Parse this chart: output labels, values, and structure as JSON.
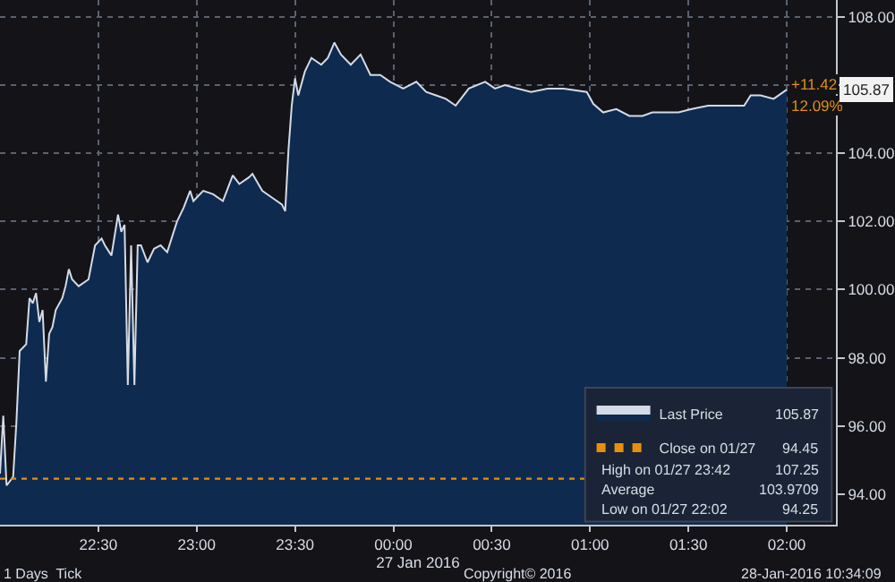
{
  "chart_data": {
    "type": "area",
    "xlabel": "27 Jan 2016",
    "x": [
      "2016-01-27T22:00",
      "2016-01-27T22:01",
      "2016-01-27T22:02",
      "2016-01-27T22:04",
      "2016-01-27T22:05",
      "2016-01-27T22:06",
      "2016-01-27T22:08",
      "2016-01-27T22:09",
      "2016-01-27T22:10",
      "2016-01-27T22:11",
      "2016-01-27T22:12",
      "2016-01-27T22:13",
      "2016-01-27T22:14",
      "2016-01-27T22:15",
      "2016-01-27T22:16",
      "2016-01-27T22:17",
      "2016-01-27T22:19",
      "2016-01-27T22:20",
      "2016-01-27T22:21",
      "2016-01-27T22:22",
      "2016-01-27T22:24",
      "2016-01-27T22:27",
      "2016-01-27T22:29",
      "2016-01-27T22:31",
      "2016-01-27T22:32",
      "2016-01-27T22:34",
      "2016-01-27T22:36",
      "2016-01-27T22:37",
      "2016-01-27T22:38",
      "2016-01-27T22:39",
      "2016-01-27T22:40",
      "2016-01-27T22:41",
      "2016-01-27T22:42",
      "2016-01-27T22:43",
      "2016-01-27T22:45",
      "2016-01-27T22:47",
      "2016-01-27T22:49",
      "2016-01-27T22:51",
      "2016-01-27T22:54",
      "2016-01-27T22:56",
      "2016-01-27T22:58",
      "2016-01-27T22:59",
      "2016-01-27T23:02",
      "2016-01-27T23:05",
      "2016-01-27T23:08",
      "2016-01-27T23:10",
      "2016-01-27T23:11",
      "2016-01-27T23:13",
      "2016-01-27T23:16",
      "2016-01-27T23:17",
      "2016-01-27T23:20",
      "2016-01-27T23:23",
      "2016-01-27T23:26",
      "2016-01-27T23:27",
      "2016-01-27T23:28",
      "2016-01-27T23:29",
      "2016-01-27T23:30",
      "2016-01-27T23:31",
      "2016-01-27T23:33",
      "2016-01-27T23:35",
      "2016-01-27T23:38",
      "2016-01-27T23:40",
      "2016-01-27T23:42",
      "2016-01-27T23:44",
      "2016-01-27T23:47",
      "2016-01-27T23:50",
      "2016-01-27T23:53",
      "2016-01-27T23:56",
      "2016-01-27T23:59",
      "2016-01-28T00:03",
      "2016-01-28T00:07",
      "2016-01-28T00:10",
      "2016-01-28T00:13",
      "2016-01-28T00:16",
      "2016-01-28T00:19",
      "2016-01-28T00:23",
      "2016-01-28T00:28",
      "2016-01-28T00:31",
      "2016-01-28T00:34",
      "2016-01-28T00:38",
      "2016-01-28T00:42",
      "2016-01-28T00:47",
      "2016-01-28T00:52",
      "2016-01-28T00:59",
      "2016-01-28T01:01",
      "2016-01-28T01:04",
      "2016-01-28T01:08",
      "2016-01-28T01:12",
      "2016-01-28T01:16",
      "2016-01-28T01:19",
      "2016-01-28T01:27",
      "2016-01-28T01:31",
      "2016-01-28T01:36",
      "2016-01-28T01:41",
      "2016-01-28T01:47",
      "2016-01-28T01:49",
      "2016-01-28T01:52",
      "2016-01-28T01:56",
      "2016-01-28T02:00"
    ],
    "series": [
      {
        "name": "Last Price",
        "color": "#d4dbe6",
        "values": [
          94.6,
          96.3,
          94.25,
          94.5,
          96.1,
          98.2,
          98.4,
          99.75,
          99.6,
          99.9,
          99.05,
          99.4,
          97.3,
          98.7,
          98.9,
          99.4,
          99.75,
          100.1,
          100.6,
          100.3,
          100.1,
          100.3,
          101.3,
          101.5,
          101.3,
          101.0,
          102.2,
          101.7,
          101.9,
          97.2,
          101.3,
          97.2,
          101.3,
          101.3,
          100.8,
          101.2,
          101.3,
          101.1,
          102.0,
          102.4,
          102.9,
          102.6,
          102.9,
          102.8,
          102.6,
          103.1,
          103.35,
          103.1,
          103.3,
          103.4,
          102.9,
          102.7,
          102.5,
          102.3,
          104.1,
          105.4,
          106.2,
          105.7,
          106.4,
          106.8,
          106.6,
          106.8,
          107.25,
          106.9,
          106.6,
          106.9,
          106.3,
          106.3,
          106.1,
          105.9,
          106.1,
          105.8,
          105.7,
          105.6,
          105.4,
          105.9,
          106.1,
          105.9,
          106.0,
          105.9,
          105.8,
          105.9,
          105.9,
          105.8,
          105.45,
          105.2,
          105.3,
          105.1,
          105.1,
          105.2,
          105.2,
          105.3,
          105.4,
          105.4,
          105.4,
          105.7,
          105.7,
          105.6,
          105.87
        ]
      }
    ],
    "xlim": [
      "2016-01-27T22:00",
      "2016-01-28T02:15"
    ],
    "xticks": [
      {
        "value": "2016-01-27T22:30",
        "label": "22:30"
      },
      {
        "value": "2016-01-27T23:00",
        "label": "23:00"
      },
      {
        "value": "2016-01-27T23:30",
        "label": "23:30"
      },
      {
        "value": "2016-01-28T00:00",
        "label": "00:00"
      },
      {
        "value": "2016-01-28T00:30",
        "label": "00:30"
      },
      {
        "value": "2016-01-28T01:00",
        "label": "01:00"
      },
      {
        "value": "2016-01-28T01:30",
        "label": "01:30"
      },
      {
        "value": "2016-01-28T02:00",
        "label": "02:00"
      }
    ],
    "ylim": [
      93.1,
      108.5
    ],
    "yticks": [
      {
        "value": 94,
        "label": "94.00"
      },
      {
        "value": 96,
        "label": "96.00"
      },
      {
        "value": 98,
        "label": "98.00"
      },
      {
        "value": 100,
        "label": "100.00"
      },
      {
        "value": 102,
        "label": "102.00"
      },
      {
        "value": 104,
        "label": "104.00"
      },
      {
        "value": 106,
        "label": null
      },
      {
        "value": 108,
        "label": "108.00"
      }
    ],
    "ref_lines": [
      {
        "axis": "y",
        "value": 94.45,
        "label": "Close on 01/27",
        "color": "#e8900c",
        "line_style": "dotted"
      }
    ],
    "annotations": [
      {
        "text": "+11.42",
        "x": "2016-01-28T02:00",
        "y": 105.87
      },
      {
        "text": "12.09%",
        "x": "2016-01-28T02:00",
        "y": 105.87
      },
      "105.87",
      "105.87",
      "94.45",
      "High on 01/27 23:42",
      "107.25",
      "Average",
      "103.9709",
      "Low on 01/27 22:02",
      "94.25",
      "1 Days  Tick",
      "Copyright© 2016",
      "28-Jan-2016 10:34:09"
    ],
    "grid": true,
    "legend": "bottom right",
    "marker": "none",
    "line_style": "solid"
  }
}
